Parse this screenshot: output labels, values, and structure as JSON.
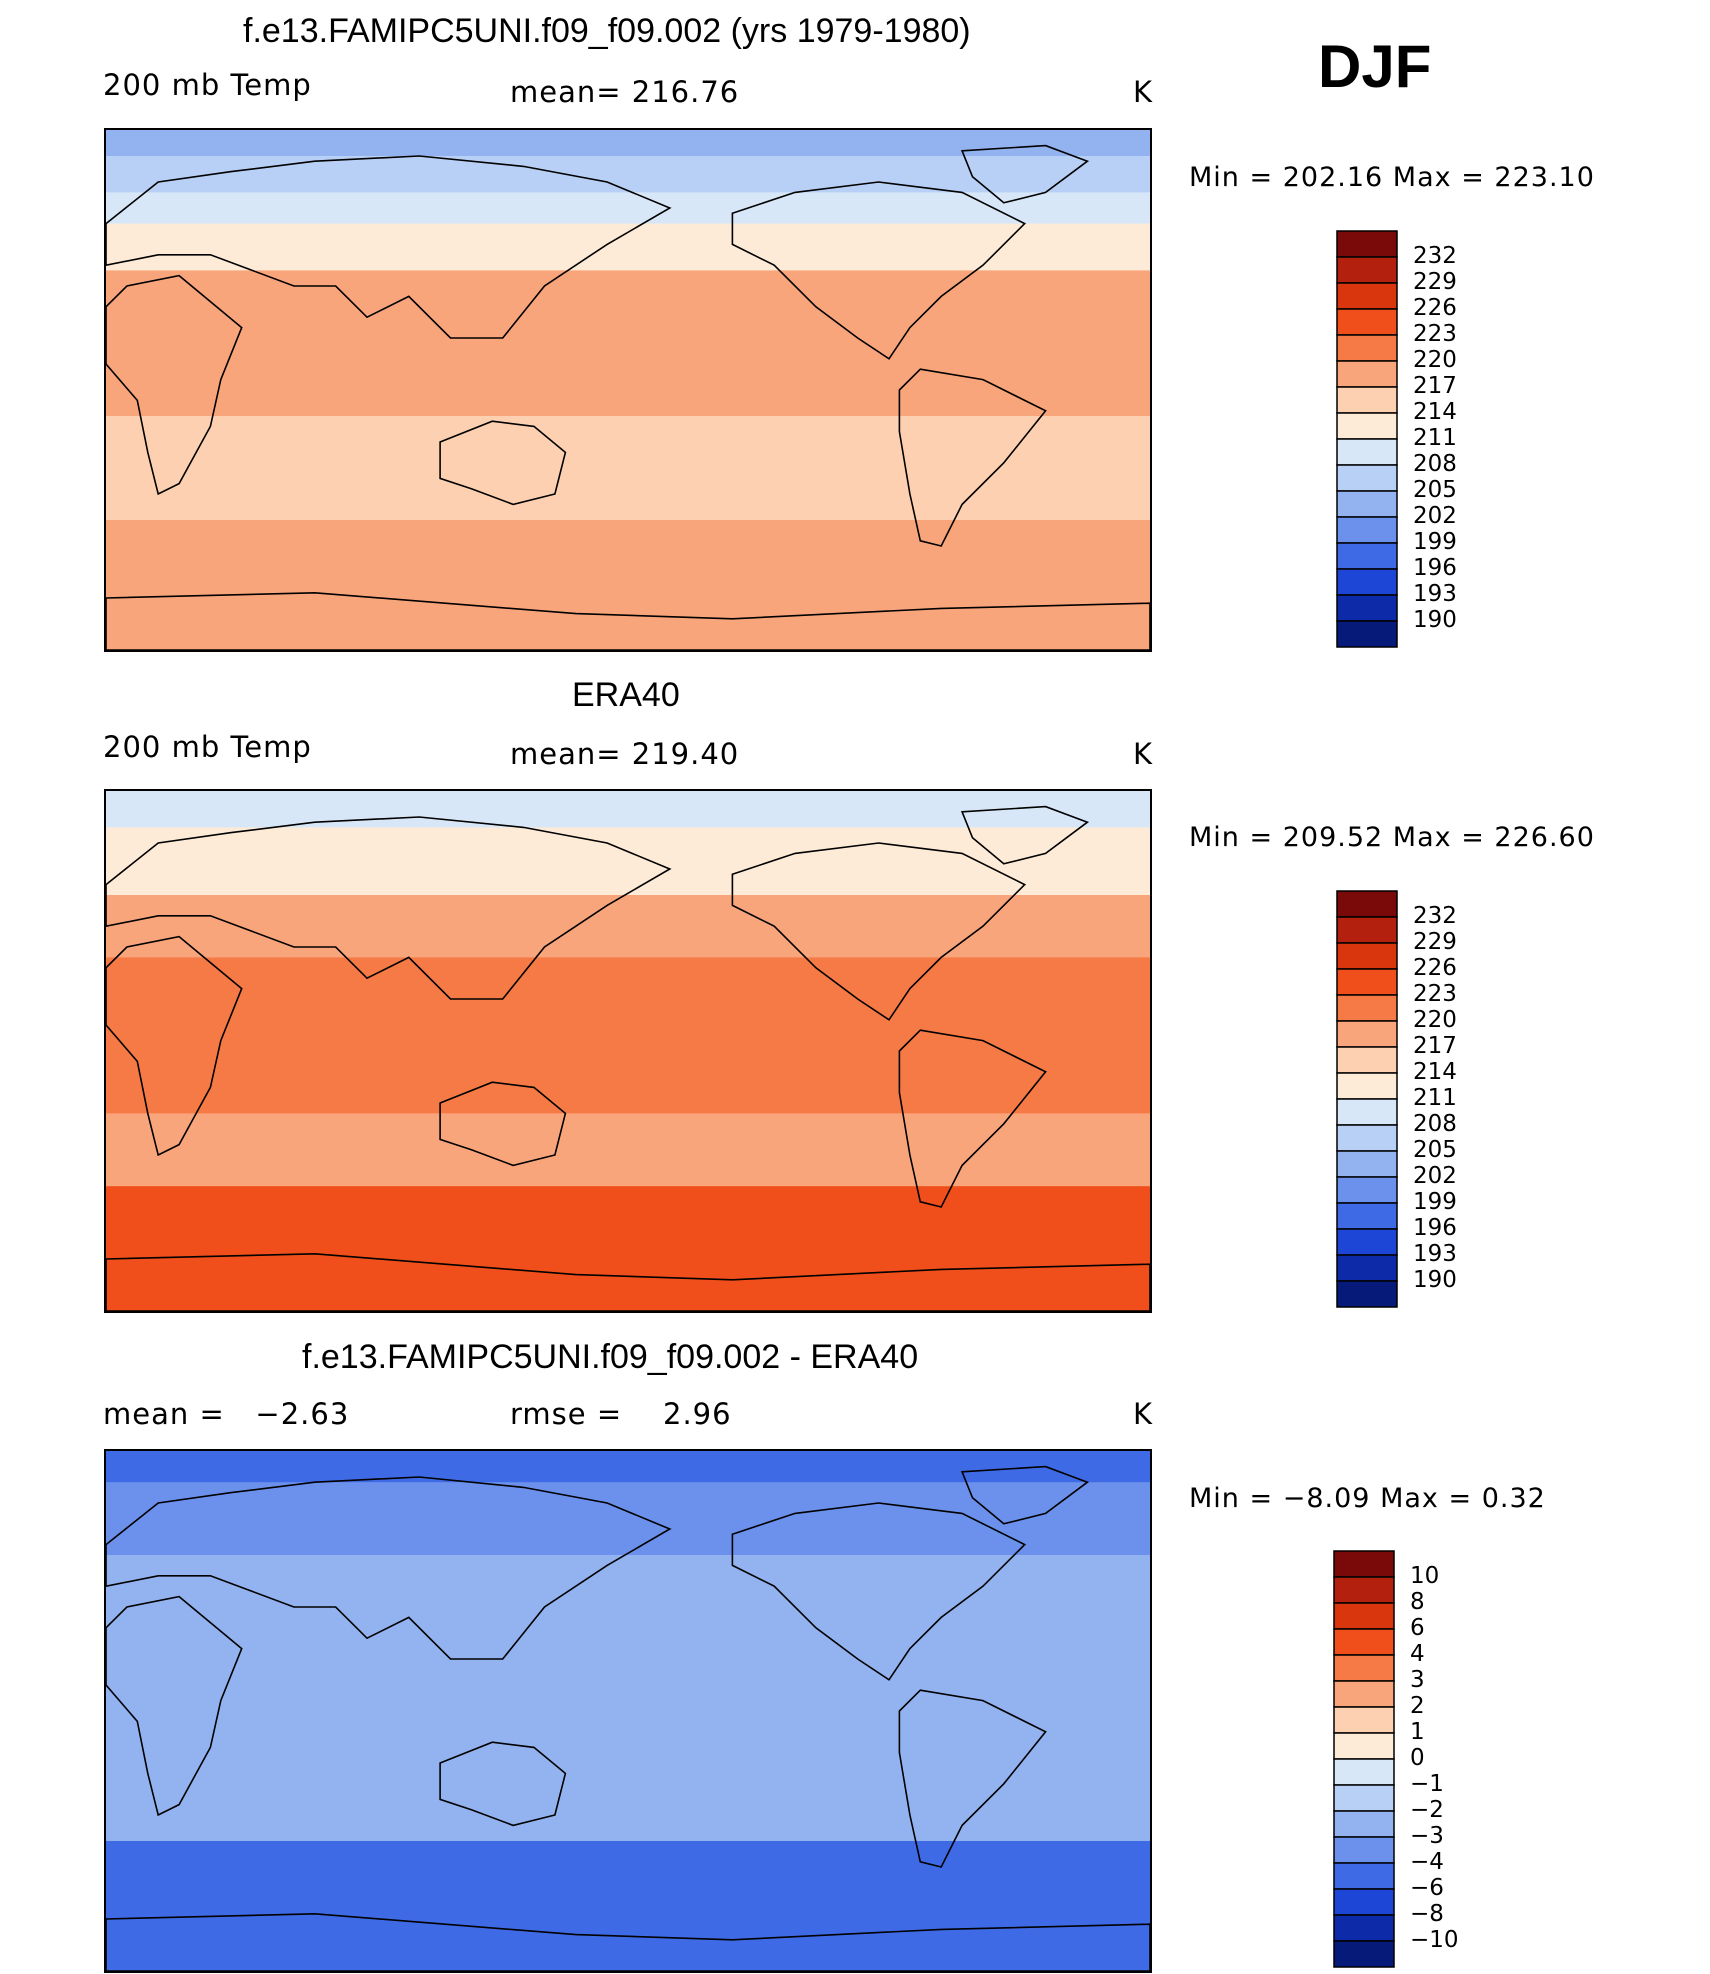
{
  "season": "DJF",
  "chart_data": [
    {
      "type": "heatmap",
      "title": "f.e13.FAMIPC5UNI.f09_f09.002 (yrs 1979-1980)",
      "field_label": "200 mb Temp",
      "stat_label": "mean=",
      "stat_value": "216.76",
      "units": "K",
      "min_label": "Min  =",
      "min_value": "202.16",
      "max_label": "Max  =",
      "max_value": "223.10",
      "colorbar_levels": [
        "232",
        "229",
        "226",
        "223",
        "220",
        "217",
        "214",
        "211",
        "208",
        "205",
        "202",
        "199",
        "196",
        "193",
        "190"
      ],
      "colorbar_colors": [
        "#7a0a0a",
        "#b3200d",
        "#d9360e",
        "#f04e1a",
        "#f67a45",
        "#f9a57c",
        "#fcd0b0",
        "#fdebd8",
        "#d8e7f8",
        "#b8d0f5",
        "#92b3f0",
        "#6b91ec",
        "#3f6ae6",
        "#1e46d6",
        "#0d2aa8",
        "#061a7a"
      ],
      "bands": [
        {
          "y0": 0,
          "y1": 0.05,
          "value": 204
        },
        {
          "y0": 0.05,
          "y1": 0.12,
          "value": 207
        },
        {
          "y0": 0.12,
          "y1": 0.18,
          "value": 210
        },
        {
          "y0": 0.18,
          "y1": 0.27,
          "value": 213
        },
        {
          "y0": 0.27,
          "y1": 0.55,
          "value": 217
        },
        {
          "y0": 0.55,
          "y1": 0.75,
          "value": 216
        },
        {
          "y0": 0.75,
          "y1": 0.82,
          "value": 217
        },
        {
          "y0": 0.82,
          "y1": 1.0,
          "value": 219
        }
      ]
    },
    {
      "type": "heatmap",
      "title": "ERA40",
      "field_label": "200 mb Temp",
      "stat_label": "mean=",
      "stat_value": "219.40",
      "units": "K",
      "min_label": "Min  =",
      "min_value": "209.52",
      "max_label": "Max  =",
      "max_value": "226.60",
      "colorbar_levels": [
        "232",
        "229",
        "226",
        "223",
        "220",
        "217",
        "214",
        "211",
        "208",
        "205",
        "202",
        "199",
        "196",
        "193",
        "190"
      ],
      "colorbar_colors": [
        "#7a0a0a",
        "#b3200d",
        "#d9360e",
        "#f04e1a",
        "#f67a45",
        "#f9a57c",
        "#fcd0b0",
        "#fdebd8",
        "#d8e7f8",
        "#b8d0f5",
        "#92b3f0",
        "#6b91ec",
        "#3f6ae6",
        "#1e46d6",
        "#0d2aa8",
        "#061a7a"
      ],
      "bands": [
        {
          "y0": 0,
          "y1": 0.07,
          "value": 210
        },
        {
          "y0": 0.07,
          "y1": 0.2,
          "value": 213
        },
        {
          "y0": 0.2,
          "y1": 0.32,
          "value": 217
        },
        {
          "y0": 0.32,
          "y1": 0.62,
          "value": 220
        },
        {
          "y0": 0.62,
          "y1": 0.76,
          "value": 218
        },
        {
          "y0": 0.76,
          "y1": 1.0,
          "value": 223
        }
      ]
    },
    {
      "type": "heatmap",
      "title": "f.e13.FAMIPC5UNI.f09_f09.002 - ERA40",
      "field_label": "mean  =",
      "stat_label": "rmse  =",
      "field_value": "−2.63",
      "stat_value": "2.96",
      "units": "K",
      "min_label": "Min  =",
      "min_value": "−8.09",
      "max_label": "Max  =",
      "max_value": "0.32",
      "colorbar_levels": [
        "10",
        "8",
        "6",
        "4",
        "3",
        "2",
        "1",
        "0",
        "−1",
        "−2",
        "−3",
        "−4",
        "−6",
        "−8",
        "−10"
      ],
      "colorbar_colors": [
        "#7a0a0a",
        "#b3200d",
        "#d9360e",
        "#f04e1a",
        "#f67a45",
        "#f9a57c",
        "#fcd0b0",
        "#fdebd8",
        "#d8e7f8",
        "#b8d0f5",
        "#92b3f0",
        "#6b91ec",
        "#3f6ae6",
        "#1e46d6",
        "#0d2aa8",
        "#061a7a"
      ],
      "bands": [
        {
          "y0": 0,
          "y1": 0.06,
          "value": -6
        },
        {
          "y0": 0.06,
          "y1": 0.2,
          "value": -3.5
        },
        {
          "y0": 0.2,
          "y1": 0.35,
          "value": -2.5
        },
        {
          "y0": 0.35,
          "y1": 0.6,
          "value": -2.2
        },
        {
          "y0": 0.6,
          "y1": 0.75,
          "value": -2.5
        },
        {
          "y0": 0.75,
          "y1": 0.85,
          "value": -4.5
        },
        {
          "y0": 0.85,
          "y1": 1.0,
          "value": -5.5
        }
      ]
    }
  ]
}
